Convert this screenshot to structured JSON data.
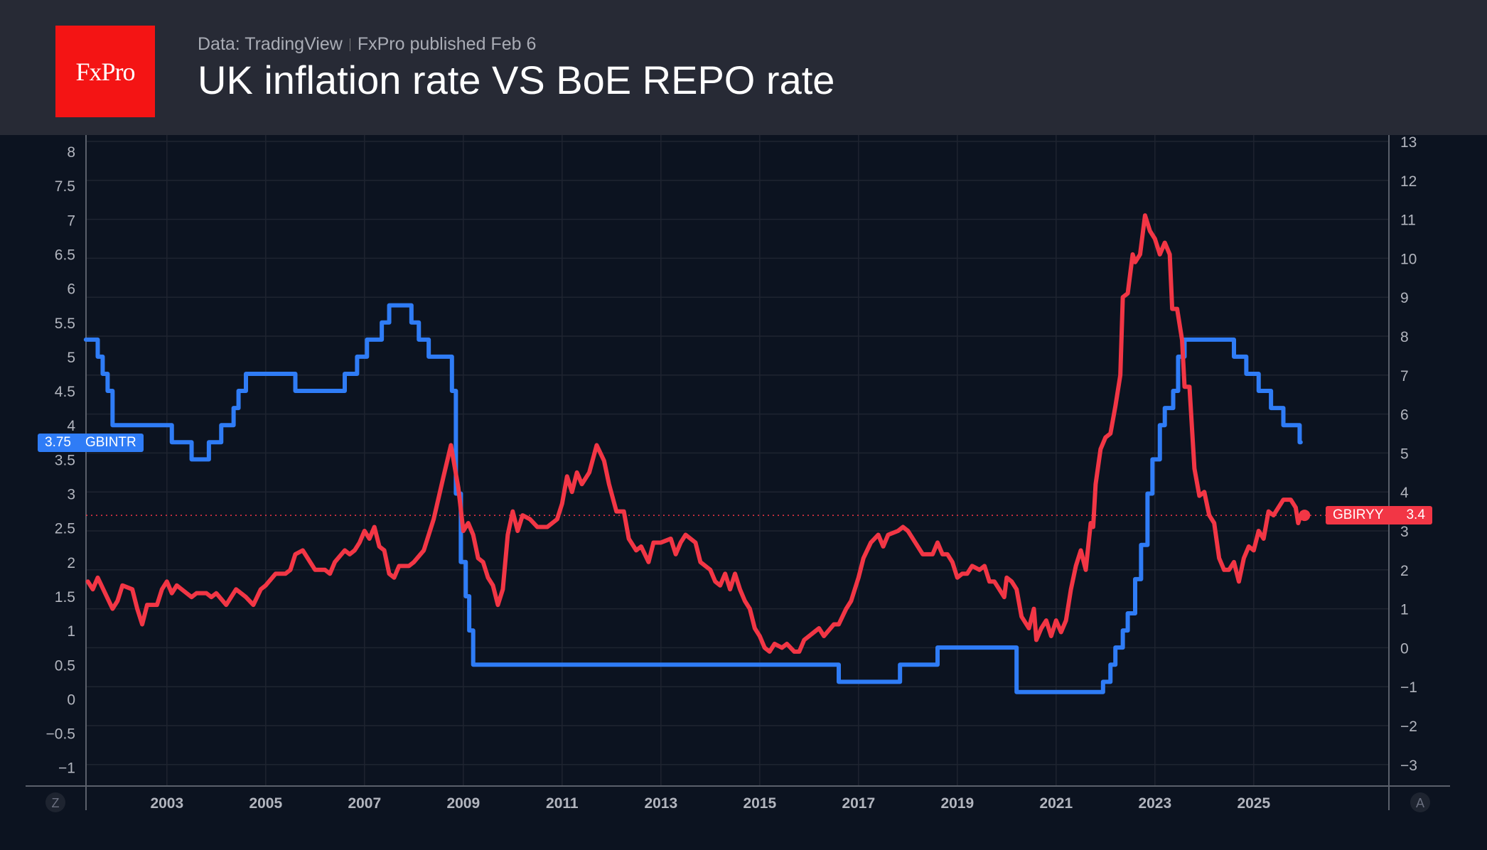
{
  "header": {
    "logo": "FxPro",
    "source": "Data: TradingView",
    "published": "FxPro published Feb 6",
    "title": "UK inflation rate VS BoE REPO rate"
  },
  "buttons": {
    "left": "Z",
    "right": "A"
  },
  "colors": {
    "background": "#0c1320",
    "header": "#272a35",
    "logo": "#f41414",
    "gbintr": "#2f7cf6",
    "gbiryy": "#f23645",
    "grid": "#1e2430",
    "axis": "#5b606b",
    "text": "#b2b5be"
  },
  "chart_data": {
    "type": "line",
    "title": "UK inflation rate VS BoE REPO rate",
    "grid": true,
    "x_ticks": [
      "2003",
      "2005",
      "2007",
      "2009",
      "2011",
      "2013",
      "2015",
      "2017",
      "2019",
      "2021",
      "2023",
      "2025"
    ],
    "xlim": [
      2001.36,
      2028.7
    ],
    "y_left": {
      "ticks": [
        "8",
        "7.5",
        "7",
        "6.5",
        "6",
        "5.5",
        "5",
        "4.5",
        "4",
        "3.5",
        "3",
        "2.5",
        "2",
        "1.5",
        "1",
        "0.5",
        "0",
        "−0.5",
        "−1"
      ],
      "range": [
        -1,
        8
      ]
    },
    "y_right": {
      "ticks": [
        "13",
        "12",
        "11",
        "10",
        "9",
        "8",
        "7",
        "6",
        "5",
        "4",
        "3",
        "2",
        "1",
        "0",
        "−1",
        "−2",
        "−3"
      ],
      "range": [
        -3,
        13
      ]
    },
    "series": [
      {
        "name": "GBINTR",
        "axis": "left",
        "last": "3.75",
        "step": true,
        "points": [
          [
            2001.36,
            5.25
          ],
          [
            2001.5,
            5.25
          ],
          [
            2001.6,
            5.0
          ],
          [
            2001.7,
            4.75
          ],
          [
            2001.8,
            4.5
          ],
          [
            2001.9,
            4.0
          ],
          [
            2003.1,
            3.75
          ],
          [
            2003.5,
            3.5
          ],
          [
            2003.85,
            3.75
          ],
          [
            2004.1,
            4.0
          ],
          [
            2004.35,
            4.25
          ],
          [
            2004.45,
            4.5
          ],
          [
            2004.6,
            4.75
          ],
          [
            2005.6,
            4.5
          ],
          [
            2006.6,
            4.75
          ],
          [
            2006.85,
            5.0
          ],
          [
            2007.05,
            5.25
          ],
          [
            2007.35,
            5.5
          ],
          [
            2007.5,
            5.75
          ],
          [
            2007.95,
            5.5
          ],
          [
            2008.1,
            5.25
          ],
          [
            2008.3,
            5.0
          ],
          [
            2008.77,
            4.5
          ],
          [
            2008.85,
            3.0
          ],
          [
            2008.95,
            2.0
          ],
          [
            2009.05,
            1.5
          ],
          [
            2009.12,
            1.0
          ],
          [
            2009.2,
            0.5
          ],
          [
            2016.6,
            0.25
          ],
          [
            2017.84,
            0.5
          ],
          [
            2018.6,
            0.75
          ],
          [
            2020.2,
            0.1
          ],
          [
            2021.95,
            0.25
          ],
          [
            2022.1,
            0.5
          ],
          [
            2022.2,
            0.75
          ],
          [
            2022.35,
            1.0
          ],
          [
            2022.45,
            1.25
          ],
          [
            2022.6,
            1.75
          ],
          [
            2022.72,
            2.25
          ],
          [
            2022.85,
            3.0
          ],
          [
            2022.95,
            3.5
          ],
          [
            2023.1,
            4.0
          ],
          [
            2023.2,
            4.25
          ],
          [
            2023.37,
            4.5
          ],
          [
            2023.47,
            5.0
          ],
          [
            2023.6,
            5.25
          ],
          [
            2024.6,
            5.0
          ],
          [
            2024.85,
            4.75
          ],
          [
            2025.1,
            4.5
          ],
          [
            2025.35,
            4.25
          ],
          [
            2025.6,
            4.0
          ],
          [
            2025.93,
            3.75
          ],
          [
            2025.95,
            3.75
          ]
        ]
      },
      {
        "name": "GBIRYY",
        "axis": "right",
        "last": "3.4",
        "step": false,
        "points": [
          [
            2001.4,
            1.7
          ],
          [
            2001.5,
            1.5
          ],
          [
            2001.6,
            1.8
          ],
          [
            2001.75,
            1.4
          ],
          [
            2001.9,
            1.0
          ],
          [
            2002.0,
            1.2
          ],
          [
            2002.1,
            1.6
          ],
          [
            2002.3,
            1.5
          ],
          [
            2002.4,
            1.0
          ],
          [
            2002.5,
            0.6
          ],
          [
            2002.6,
            1.1
          ],
          [
            2002.8,
            1.1
          ],
          [
            2002.9,
            1.5
          ],
          [
            2003.0,
            1.7
          ],
          [
            2003.1,
            1.4
          ],
          [
            2003.2,
            1.6
          ],
          [
            2003.4,
            1.4
          ],
          [
            2003.5,
            1.3
          ],
          [
            2003.6,
            1.4
          ],
          [
            2003.8,
            1.4
          ],
          [
            2003.9,
            1.3
          ],
          [
            2004.0,
            1.4
          ],
          [
            2004.2,
            1.1
          ],
          [
            2004.4,
            1.5
          ],
          [
            2004.6,
            1.3
          ],
          [
            2004.75,
            1.1
          ],
          [
            2004.9,
            1.5
          ],
          [
            2005.0,
            1.6
          ],
          [
            2005.2,
            1.9
          ],
          [
            2005.4,
            1.9
          ],
          [
            2005.5,
            2.0
          ],
          [
            2005.6,
            2.4
          ],
          [
            2005.75,
            2.5
          ],
          [
            2005.9,
            2.2
          ],
          [
            2006.0,
            2.0
          ],
          [
            2006.2,
            2.0
          ],
          [
            2006.3,
            1.9
          ],
          [
            2006.4,
            2.2
          ],
          [
            2006.6,
            2.5
          ],
          [
            2006.7,
            2.4
          ],
          [
            2006.8,
            2.5
          ],
          [
            2006.9,
            2.7
          ],
          [
            2007.0,
            3.0
          ],
          [
            2007.1,
            2.8
          ],
          [
            2007.2,
            3.1
          ],
          [
            2007.3,
            2.6
          ],
          [
            2007.4,
            2.5
          ],
          [
            2007.5,
            1.9
          ],
          [
            2007.6,
            1.8
          ],
          [
            2007.7,
            2.1
          ],
          [
            2007.9,
            2.1
          ],
          [
            2008.0,
            2.2
          ],
          [
            2008.2,
            2.5
          ],
          [
            2008.4,
            3.3
          ],
          [
            2008.6,
            4.4
          ],
          [
            2008.75,
            5.2
          ],
          [
            2008.9,
            4.1
          ],
          [
            2009.0,
            3.0
          ],
          [
            2009.1,
            3.2
          ],
          [
            2009.2,
            2.9
          ],
          [
            2009.3,
            2.3
          ],
          [
            2009.4,
            2.2
          ],
          [
            2009.5,
            1.8
          ],
          [
            2009.6,
            1.6
          ],
          [
            2009.7,
            1.1
          ],
          [
            2009.8,
            1.5
          ],
          [
            2009.9,
            2.9
          ],
          [
            2010.0,
            3.5
          ],
          [
            2010.1,
            3.0
          ],
          [
            2010.2,
            3.4
          ],
          [
            2010.35,
            3.3
          ],
          [
            2010.5,
            3.1
          ],
          [
            2010.7,
            3.1
          ],
          [
            2010.9,
            3.3
          ],
          [
            2011.0,
            3.7
          ],
          [
            2011.1,
            4.4
          ],
          [
            2011.2,
            4.0
          ],
          [
            2011.3,
            4.5
          ],
          [
            2011.4,
            4.2
          ],
          [
            2011.55,
            4.5
          ],
          [
            2011.7,
            5.2
          ],
          [
            2011.85,
            4.8
          ],
          [
            2011.95,
            4.2
          ],
          [
            2012.1,
            3.5
          ],
          [
            2012.25,
            3.5
          ],
          [
            2012.35,
            2.8
          ],
          [
            2012.5,
            2.5
          ],
          [
            2012.6,
            2.6
          ],
          [
            2012.75,
            2.2
          ],
          [
            2012.85,
            2.7
          ],
          [
            2013.0,
            2.7
          ],
          [
            2013.2,
            2.8
          ],
          [
            2013.3,
            2.4
          ],
          [
            2013.4,
            2.7
          ],
          [
            2013.5,
            2.9
          ],
          [
            2013.7,
            2.7
          ],
          [
            2013.8,
            2.2
          ],
          [
            2014.0,
            2.0
          ],
          [
            2014.1,
            1.7
          ],
          [
            2014.2,
            1.6
          ],
          [
            2014.3,
            1.9
          ],
          [
            2014.4,
            1.5
          ],
          [
            2014.5,
            1.9
          ],
          [
            2014.6,
            1.5
          ],
          [
            2014.7,
            1.2
          ],
          [
            2014.8,
            1.0
          ],
          [
            2014.9,
            0.5
          ],
          [
            2015.0,
            0.3
          ],
          [
            2015.1,
            0.0
          ],
          [
            2015.2,
            -0.1
          ],
          [
            2015.3,
            0.1
          ],
          [
            2015.45,
            0.0
          ],
          [
            2015.55,
            0.1
          ],
          [
            2015.7,
            -0.1
          ],
          [
            2015.8,
            -0.1
          ],
          [
            2015.9,
            0.2
          ],
          [
            2016.0,
            0.3
          ],
          [
            2016.2,
            0.5
          ],
          [
            2016.3,
            0.3
          ],
          [
            2016.5,
            0.6
          ],
          [
            2016.6,
            0.6
          ],
          [
            2016.75,
            1.0
          ],
          [
            2016.85,
            1.2
          ],
          [
            2017.0,
            1.8
          ],
          [
            2017.1,
            2.3
          ],
          [
            2017.25,
            2.7
          ],
          [
            2017.4,
            2.9
          ],
          [
            2017.5,
            2.6
          ],
          [
            2017.6,
            2.9
          ],
          [
            2017.8,
            3.0
          ],
          [
            2017.9,
            3.1
          ],
          [
            2018.0,
            3.0
          ],
          [
            2018.15,
            2.7
          ],
          [
            2018.3,
            2.4
          ],
          [
            2018.5,
            2.4
          ],
          [
            2018.6,
            2.7
          ],
          [
            2018.7,
            2.4
          ],
          [
            2018.8,
            2.4
          ],
          [
            2018.9,
            2.2
          ],
          [
            2019.0,
            1.8
          ],
          [
            2019.1,
            1.9
          ],
          [
            2019.2,
            1.9
          ],
          [
            2019.3,
            2.1
          ],
          [
            2019.45,
            2.0
          ],
          [
            2019.55,
            2.1
          ],
          [
            2019.65,
            1.7
          ],
          [
            2019.75,
            1.7
          ],
          [
            2019.85,
            1.5
          ],
          [
            2019.95,
            1.3
          ],
          [
            2020.0,
            1.8
          ],
          [
            2020.1,
            1.7
          ],
          [
            2020.2,
            1.5
          ],
          [
            2020.3,
            0.8
          ],
          [
            2020.45,
            0.5
          ],
          [
            2020.55,
            1.0
          ],
          [
            2020.6,
            0.2
          ],
          [
            2020.7,
            0.5
          ],
          [
            2020.8,
            0.7
          ],
          [
            2020.9,
            0.3
          ],
          [
            2021.0,
            0.7
          ],
          [
            2021.1,
            0.4
          ],
          [
            2021.2,
            0.7
          ],
          [
            2021.3,
            1.5
          ],
          [
            2021.4,
            2.1
          ],
          [
            2021.5,
            2.5
          ],
          [
            2021.6,
            2.0
          ],
          [
            2021.7,
            3.2
          ],
          [
            2021.75,
            3.1
          ],
          [
            2021.8,
            4.2
          ],
          [
            2021.9,
            5.1
          ],
          [
            2022.0,
            5.4
          ],
          [
            2022.1,
            5.5
          ],
          [
            2022.2,
            6.2
          ],
          [
            2022.3,
            7.0
          ],
          [
            2022.35,
            9.0
          ],
          [
            2022.45,
            9.1
          ],
          [
            2022.55,
            10.1
          ],
          [
            2022.6,
            9.9
          ],
          [
            2022.7,
            10.1
          ],
          [
            2022.8,
            11.1
          ],
          [
            2022.9,
            10.7
          ],
          [
            2023.0,
            10.5
          ],
          [
            2023.1,
            10.1
          ],
          [
            2023.2,
            10.4
          ],
          [
            2023.3,
            10.1
          ],
          [
            2023.35,
            8.7
          ],
          [
            2023.45,
            8.7
          ],
          [
            2023.55,
            7.9
          ],
          [
            2023.6,
            6.7
          ],
          [
            2023.7,
            6.7
          ],
          [
            2023.8,
            4.6
          ],
          [
            2023.9,
            3.9
          ],
          [
            2024.0,
            4.0
          ],
          [
            2024.1,
            3.4
          ],
          [
            2024.2,
            3.2
          ],
          [
            2024.3,
            2.3
          ],
          [
            2024.4,
            2.0
          ],
          [
            2024.5,
            2.0
          ],
          [
            2024.6,
            2.2
          ],
          [
            2024.7,
            1.7
          ],
          [
            2024.8,
            2.3
          ],
          [
            2024.9,
            2.6
          ],
          [
            2025.0,
            2.5
          ],
          [
            2025.1,
            3.0
          ],
          [
            2025.2,
            2.8
          ],
          [
            2025.3,
            3.5
          ],
          [
            2025.4,
            3.4
          ],
          [
            2025.5,
            3.6
          ],
          [
            2025.6,
            3.8
          ],
          [
            2025.75,
            3.8
          ],
          [
            2025.85,
            3.6
          ],
          [
            2025.9,
            3.2
          ],
          [
            2025.95,
            3.4
          ],
          [
            2026.0,
            3.4
          ]
        ]
      }
    ]
  }
}
